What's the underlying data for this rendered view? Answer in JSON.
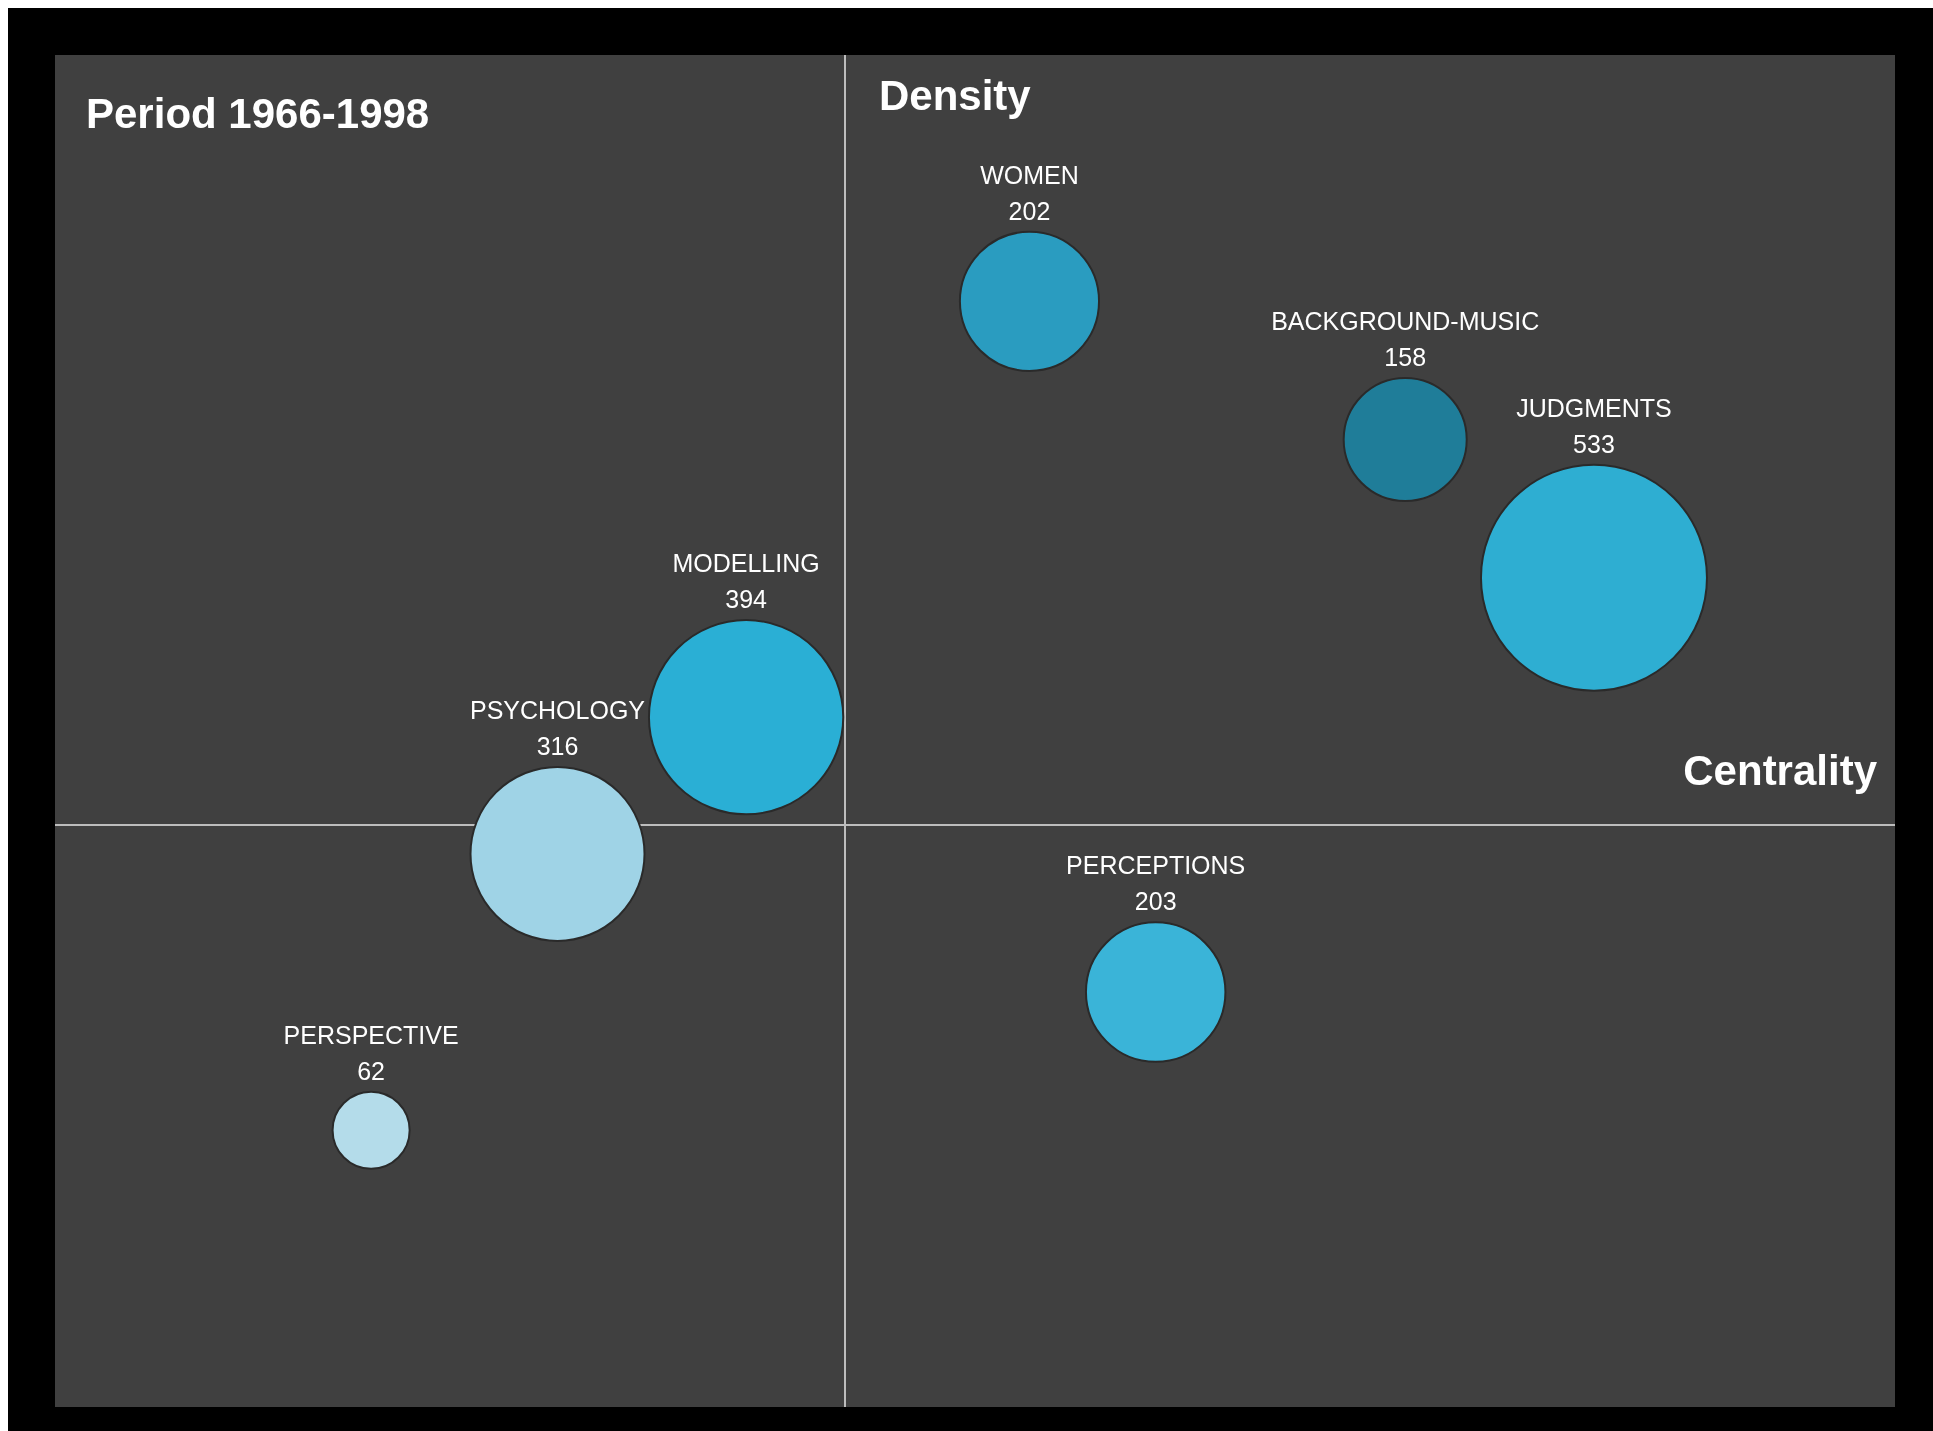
{
  "chart_data": {
    "type": "other",
    "title": "Period 1966-1998",
    "xlabel": "Centrality",
    "ylabel": "Density",
    "categories": [
      "WOMEN",
      "BACKGROUND-MUSIC",
      "JUDGMENTS",
      "MODELLING",
      "PSYCHOLOGY",
      "PERCEPTIONS",
      "PERSPECTIVE"
    ],
    "values": [
      202,
      158,
      533,
      394,
      316,
      203,
      62
    ],
    "data_labels": true,
    "colors": [
      "#2a9cc0",
      "#1f7d99",
      "#2eaed2",
      "#2aafd5",
      "#9fd3e6",
      "#3ab4d8",
      "#b4dcea"
    ]
  }
}
